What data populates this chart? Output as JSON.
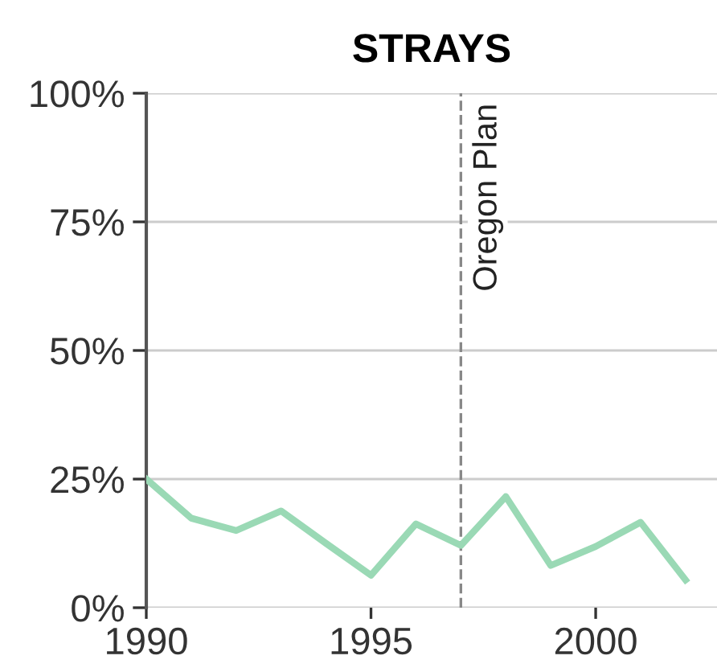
{
  "chart_data": {
    "type": "line",
    "title": "STRAYS",
    "x": [
      1990,
      1991,
      1992,
      1993,
      1994,
      1995,
      1996,
      1997,
      1998,
      1999,
      2000,
      2001,
      2002
    ],
    "series": [
      {
        "color": "#9ad9b5",
        "values": [
          25,
          17.4,
          15,
          18.8,
          12.5,
          6.3,
          16.3,
          12.1,
          21.6,
          8.2,
          11.9,
          16.6,
          5.4
        ]
      }
    ],
    "xlim": [
      1990,
      2002.7
    ],
    "xticks": [
      1990,
      1995,
      2000
    ],
    "ylim": [
      0,
      100
    ],
    "yticks": [
      {
        "value": 0,
        "label": "0%"
      },
      {
        "value": 25,
        "label": "25%"
      },
      {
        "value": 50,
        "label": "50%"
      },
      {
        "value": 75,
        "label": "75%"
      },
      {
        "value": 100,
        "label": "100%"
      }
    ],
    "grid": "y",
    "line_style": "solid",
    "ref_lines": [
      {
        "axis": "x",
        "value": 1997,
        "label": "Oregon Plan",
        "color": "#888888",
        "line_style": "dashed"
      }
    ]
  }
}
